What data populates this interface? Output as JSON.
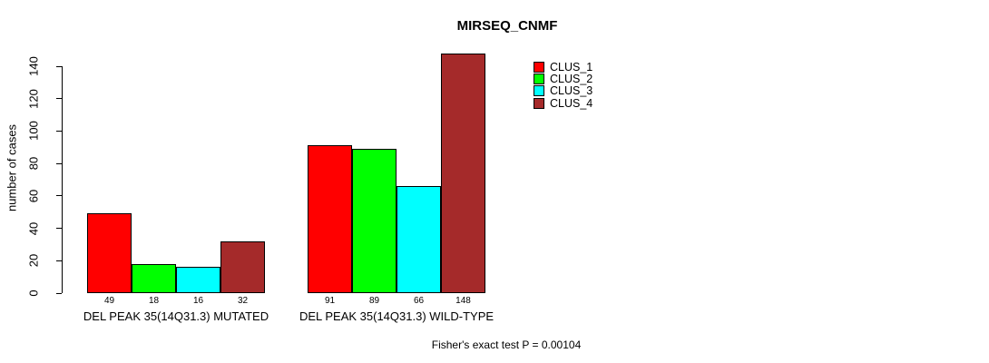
{
  "chart_data": {
    "type": "bar",
    "title": "MIRSEQ_CNMF",
    "ylabel": "number of cases",
    "xlabel": "",
    "categories": [
      "DEL PEAK 35(14Q31.3) MUTATED",
      "DEL PEAK 35(14Q31.3) WILD-TYPE"
    ],
    "series": [
      {
        "name": "CLUS_1",
        "color": "#FF0000",
        "values": [
          49,
          91
        ]
      },
      {
        "name": "CLUS_2",
        "color": "#00FF00",
        "values": [
          18,
          89
        ]
      },
      {
        "name": "CLUS_3",
        "color": "#00FFFF",
        "values": [
          16,
          66
        ]
      },
      {
        "name": "CLUS_4",
        "color": "#A52A2A",
        "values": [
          32,
          148
        ]
      }
    ],
    "yticks": [
      0,
      20,
      40,
      60,
      80,
      100,
      120,
      140
    ],
    "ylim": [
      0,
      148
    ],
    "bar_value_labels": [
      [
        "49",
        "18",
        "16",
        "32"
      ],
      [
        "91",
        "89",
        "66",
        "148"
      ]
    ],
    "grid": false,
    "legend_position": "inside-top-right",
    "annotation": "Fisher's exact test P = 0.00104"
  }
}
